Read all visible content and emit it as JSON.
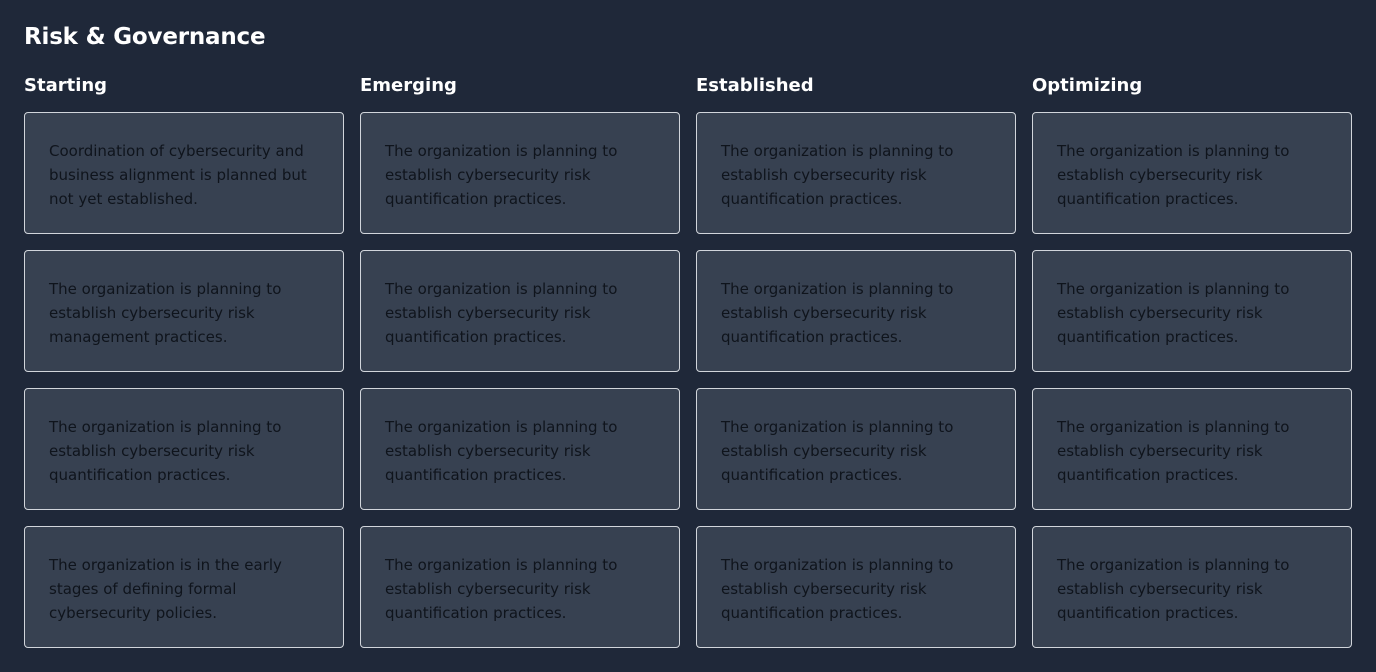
{
  "page": {
    "title": "Risk & Governance"
  },
  "columns": [
    {
      "header": "Starting",
      "cards": [
        "Coordination of cybersecurity and business alignment is planned but not yet established.",
        "The organization is planning to establish cybersecurity risk management practices.",
        "The organization is planning to establish cybersecurity risk quantification practices.",
        "The organization is in the early stages of defining formal cybersecurity policies."
      ]
    },
    {
      "header": "Emerging",
      "cards": [
        "The organization is planning to establish cybersecurity risk quantification practices.",
        "The organization is planning to establish cybersecurity risk quantification practices.",
        "The organization is planning to establish cybersecurity risk quantification practices.",
        "The organization is planning to establish cybersecurity risk quantification practices."
      ]
    },
    {
      "header": "Established",
      "cards": [
        "The organization is planning to establish cybersecurity risk quantification practices.",
        "The organization is planning to establish cybersecurity risk quantification practices.",
        "The organization is planning to establish cybersecurity risk quantification practices.",
        "The organization is planning to establish cybersecurity risk quantification practices."
      ]
    },
    {
      "header": "Optimizing",
      "cards": [
        "The organization is planning to establish cybersecurity risk quantification practices.",
        "The organization is planning to establish cybersecurity risk quantification practices.",
        "The organization is planning to establish cybersecurity risk quantification practices.",
        "The organization is planning to establish cybersecurity risk quantification practices."
      ]
    }
  ],
  "colors": {
    "background": "#1f2839",
    "card_background": "#374151",
    "card_border": "#d1d5db",
    "heading_text": "#ffffff",
    "card_text": "#0f141c"
  }
}
